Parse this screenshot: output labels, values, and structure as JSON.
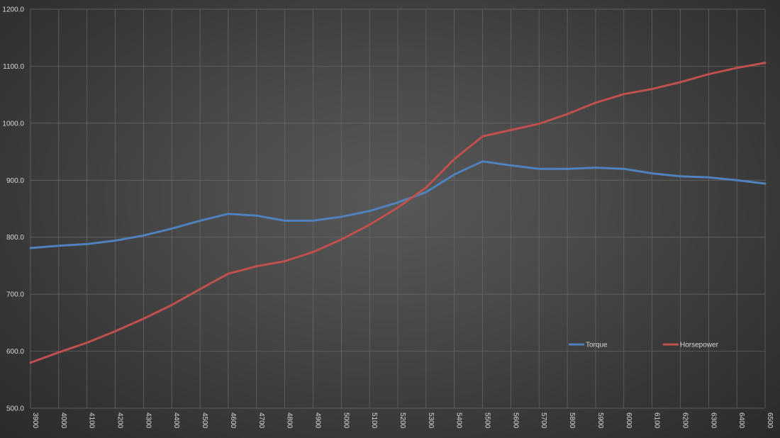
{
  "chart_data": {
    "type": "line",
    "categories": [
      "3900",
      "4000",
      "4100",
      "4200",
      "4300",
      "4400",
      "4500",
      "4600",
      "4700",
      "4800",
      "4900",
      "5000",
      "5100",
      "5200",
      "5300",
      "5400",
      "5500",
      "5600",
      "5700",
      "5800",
      "5900",
      "6000",
      "6100",
      "6200",
      "6300",
      "6400",
      "6500"
    ],
    "series": [
      {
        "name": "Torque",
        "color": "#4f81bd",
        "values": [
          781,
          785,
          788,
          794,
          803,
          815,
          829,
          841,
          838,
          829,
          829,
          836,
          846,
          861,
          879,
          910,
          933,
          926,
          920,
          920,
          922,
          920,
          912,
          907,
          905,
          900,
          894
        ]
      },
      {
        "name": "Horsepower",
        "color": "#c0504d",
        "values": [
          580,
          598,
          615,
          635,
          657,
          681,
          709,
          736,
          749,
          758,
          774,
          796,
          822,
          852,
          887,
          937,
          977,
          988,
          999,
          1016,
          1036,
          1051,
          1060,
          1072,
          1086,
          1097,
          1106
        ]
      }
    ],
    "ylim": [
      500,
      1200
    ],
    "yticks": [
      "500.0",
      "600.0",
      "700.0",
      "800.0",
      "900.0",
      "1000.0",
      "1100.0",
      "1200.0"
    ],
    "grid": true,
    "legend_position": "inside-right",
    "title": "",
    "xlabel": "",
    "ylabel": ""
  }
}
